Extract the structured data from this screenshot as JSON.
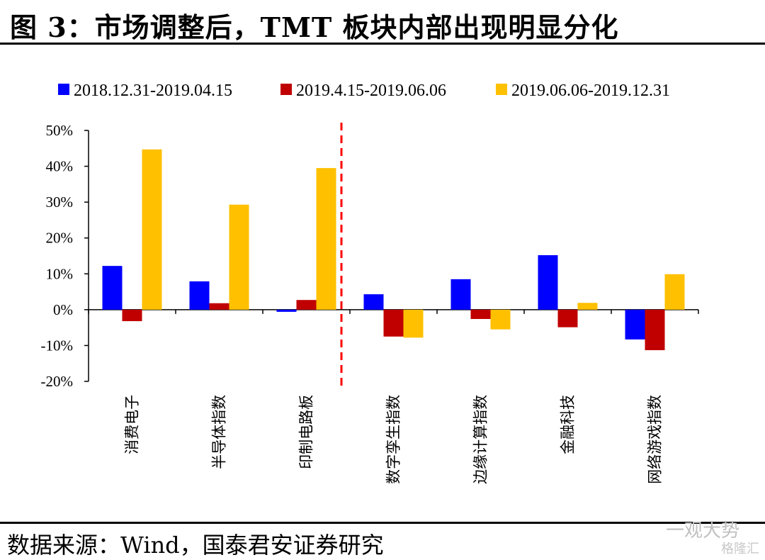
{
  "header": {
    "title": "图 3：市场调整后，TMT 板块内部出现明显分化"
  },
  "footer": {
    "source": "数据来源：Wind，国泰君安证券研究"
  },
  "watermark": {
    "main": "一观大势",
    "sub": "格隆汇"
  },
  "chart_data": {
    "type": "bar",
    "categories": [
      "消费电子",
      "半导体指数",
      "印制电路板",
      "数字孪生指数",
      "边缘计算指数",
      "金融科技",
      "网络游戏指数"
    ],
    "series": [
      {
        "name": "2018.12.31-2019.04.15",
        "color": "#0000ff",
        "values": [
          12.2,
          7.9,
          -0.6,
          4.3,
          8.5,
          15.2,
          -8.3
        ]
      },
      {
        "name": "2019.4.15-2019.06.06",
        "color": "#c00000",
        "values": [
          -3.2,
          1.8,
          2.7,
          -7.5,
          -2.6,
          -4.9,
          -11.3
        ]
      },
      {
        "name": "2019.06.06-2019.12.31",
        "color": "#ffc000",
        "values": [
          44.7,
          29.3,
          39.5,
          -7.8,
          -5.5,
          1.9,
          9.9
        ]
      }
    ],
    "ylim": [
      -20,
      50
    ],
    "yticks": [
      -20,
      -10,
      0,
      10,
      20,
      30,
      40,
      50
    ],
    "ytick_labels": [
      "-20%",
      "-10%",
      "0%",
      "10%",
      "20%",
      "30%",
      "40%",
      "50%"
    ],
    "xlabel": "",
    "ylabel": "",
    "legend": "top",
    "divider_after_category": 3,
    "divider_color": "#ff0000",
    "grid": false
  }
}
